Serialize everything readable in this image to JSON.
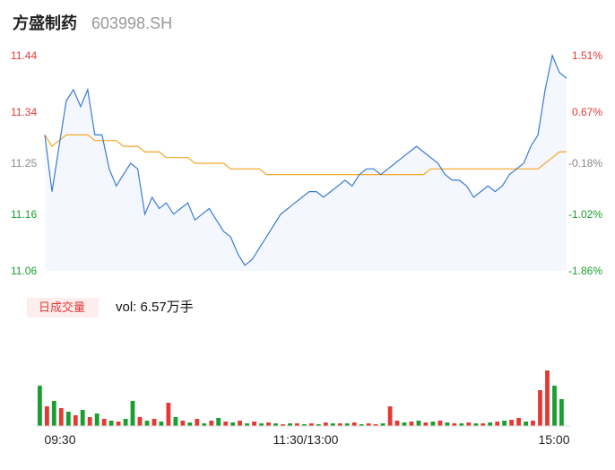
{
  "header": {
    "stock_name": "方盛制药",
    "stock_code": "603998.SH"
  },
  "volume_panel": {
    "tab_label": "日成交量",
    "vol_label": "vol: 6.57万手"
  },
  "colors": {
    "up": "#e53935",
    "down": "#1a9e2f",
    "price_line": "#3a7bd5",
    "avg_line": "#f5a623",
    "area_fill": "#f4f7fd",
    "neutral": "#888888"
  },
  "chart_data": {
    "type": "line",
    "prev_close": 11.27,
    "y_left_ticks": [
      "11.44",
      "11.34",
      "11.25",
      "11.16",
      "11.06"
    ],
    "y_right_ticks": [
      "1.51%",
      "0.67%",
      "-0.18%",
      "-1.02%",
      "-1.86%"
    ],
    "ylim": [
      11.06,
      11.44
    ],
    "x_ticks": [
      "09:30",
      "11:30/13:00",
      "15:00"
    ],
    "series": [
      {
        "values": [
          11.3,
          11.2,
          11.28,
          11.36,
          11.38,
          11.35,
          11.38,
          11.3,
          11.3,
          11.24,
          11.21,
          11.23,
          11.25,
          11.24,
          11.16,
          11.19,
          11.17,
          11.18,
          11.16,
          11.17,
          11.18,
          11.15,
          11.16,
          11.17,
          11.15,
          11.13,
          11.12,
          11.09,
          11.07,
          11.08,
          11.1,
          11.12,
          11.14,
          11.16,
          11.17,
          11.18,
          11.19,
          11.2,
          11.2,
          11.19,
          11.2,
          11.21,
          11.22,
          11.21,
          11.23,
          11.24,
          11.24,
          11.23,
          11.24,
          11.25,
          11.26,
          11.27,
          11.28,
          11.27,
          11.26,
          11.25,
          11.23,
          11.22,
          11.22,
          11.21,
          11.19,
          11.2,
          11.21,
          11.2,
          11.21,
          11.23,
          11.24,
          11.25,
          11.28,
          11.3,
          11.38,
          11.44,
          11.41,
          11.4
        ]
      },
      {
        "values": [
          11.3,
          11.28,
          11.29,
          11.3,
          11.3,
          11.3,
          11.3,
          11.29,
          11.29,
          11.29,
          11.29,
          11.28,
          11.28,
          11.28,
          11.27,
          11.27,
          11.27,
          11.26,
          11.26,
          11.26,
          11.26,
          11.25,
          11.25,
          11.25,
          11.25,
          11.25,
          11.24,
          11.24,
          11.24,
          11.24,
          11.24,
          11.23,
          11.23,
          11.23,
          11.23,
          11.23,
          11.23,
          11.23,
          11.23,
          11.23,
          11.23,
          11.23,
          11.23,
          11.23,
          11.23,
          11.23,
          11.23,
          11.23,
          11.23,
          11.23,
          11.23,
          11.23,
          11.23,
          11.23,
          11.24,
          11.24,
          11.24,
          11.24,
          11.24,
          11.24,
          11.24,
          11.24,
          11.24,
          11.24,
          11.24,
          11.24,
          11.24,
          11.24,
          11.24,
          11.24,
          11.25,
          11.26,
          11.27,
          11.27
        ]
      }
    ],
    "volume": [
      {
        "v": 0.45,
        "up": false
      },
      {
        "v": 0.22,
        "up": true
      },
      {
        "v": 0.28,
        "up": false
      },
      {
        "v": 0.2,
        "up": true
      },
      {
        "v": 0.16,
        "up": false
      },
      {
        "v": 0.12,
        "up": true
      },
      {
        "v": 0.18,
        "up": false
      },
      {
        "v": 0.1,
        "up": true
      },
      {
        "v": 0.14,
        "up": false
      },
      {
        "v": 0.08,
        "up": true
      },
      {
        "v": 0.06,
        "up": false
      },
      {
        "v": 0.05,
        "up": true
      },
      {
        "v": 0.08,
        "up": false
      },
      {
        "v": 0.28,
        "up": false
      },
      {
        "v": 0.1,
        "up": true
      },
      {
        "v": 0.06,
        "up": false
      },
      {
        "v": 0.08,
        "up": true
      },
      {
        "v": 0.05,
        "up": false
      },
      {
        "v": 0.26,
        "up": true
      },
      {
        "v": 0.1,
        "up": false
      },
      {
        "v": 0.06,
        "up": true
      },
      {
        "v": 0.04,
        "up": false
      },
      {
        "v": 0.08,
        "up": true
      },
      {
        "v": 0.03,
        "up": false
      },
      {
        "v": 0.06,
        "up": true
      },
      {
        "v": 0.09,
        "up": false
      },
      {
        "v": 0.05,
        "up": true
      },
      {
        "v": 0.04,
        "up": false
      },
      {
        "v": 0.06,
        "up": true
      },
      {
        "v": 0.03,
        "up": false
      },
      {
        "v": 0.05,
        "up": true
      },
      {
        "v": 0.03,
        "up": false
      },
      {
        "v": 0.04,
        "up": true
      },
      {
        "v": 0.03,
        "up": false
      },
      {
        "v": 0.02,
        "up": true
      },
      {
        "v": 0.03,
        "up": false
      },
      {
        "v": 0.03,
        "up": true
      },
      {
        "v": 0.02,
        "up": false
      },
      {
        "v": 0.03,
        "up": true
      },
      {
        "v": 0.02,
        "up": false
      },
      {
        "v": 0.04,
        "up": true
      },
      {
        "v": 0.03,
        "up": false
      },
      {
        "v": 0.03,
        "up": true
      },
      {
        "v": 0.03,
        "up": false
      },
      {
        "v": 0.04,
        "up": true
      },
      {
        "v": 0.02,
        "up": false
      },
      {
        "v": 0.03,
        "up": true
      },
      {
        "v": 0.02,
        "up": true
      },
      {
        "v": 0.03,
        "up": false
      },
      {
        "v": 0.22,
        "up": true
      },
      {
        "v": 0.06,
        "up": true
      },
      {
        "v": 0.04,
        "up": false
      },
      {
        "v": 0.05,
        "up": true
      },
      {
        "v": 0.06,
        "up": false
      },
      {
        "v": 0.04,
        "up": true
      },
      {
        "v": 0.05,
        "up": false
      },
      {
        "v": 0.06,
        "up": true
      },
      {
        "v": 0.04,
        "up": false
      },
      {
        "v": 0.03,
        "up": true
      },
      {
        "v": 0.03,
        "up": false
      },
      {
        "v": 0.04,
        "up": true
      },
      {
        "v": 0.03,
        "up": false
      },
      {
        "v": 0.03,
        "up": true
      },
      {
        "v": 0.04,
        "up": false
      },
      {
        "v": 0.05,
        "up": true
      },
      {
        "v": 0.06,
        "up": false
      },
      {
        "v": 0.07,
        "up": true
      },
      {
        "v": 0.09,
        "up": true
      },
      {
        "v": 0.05,
        "up": false
      },
      {
        "v": 0.06,
        "up": true
      },
      {
        "v": 0.4,
        "up": true
      },
      {
        "v": 0.62,
        "up": true
      },
      {
        "v": 0.45,
        "up": false
      },
      {
        "v": 0.3,
        "up": false
      }
    ]
  }
}
